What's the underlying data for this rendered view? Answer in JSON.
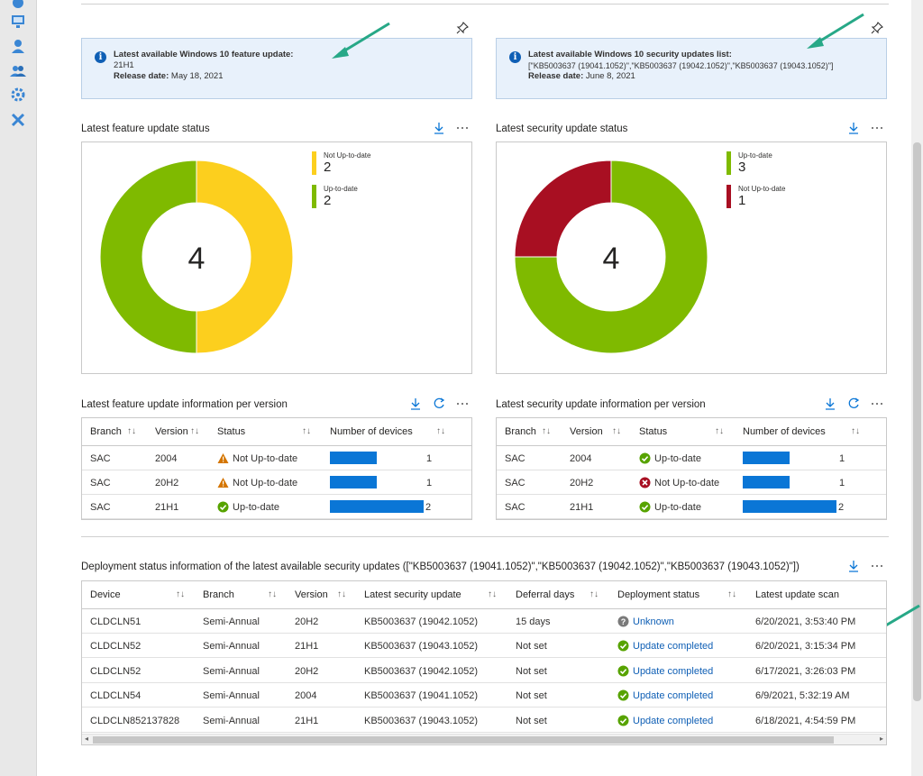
{
  "colors": {
    "accent": "#0a76d6",
    "yellow": "#fccf1e",
    "green": "#7fba00",
    "red": "#a80f22",
    "info_bg": "#e8f1fb",
    "arrow": "#27a887"
  },
  "left_rail": {
    "icons": [
      "cloud-icon",
      "monitor-icon",
      "user-icon",
      "users-icon",
      "gear-group-icon",
      "tools-icon"
    ]
  },
  "feature_info": {
    "title": "Latest available Windows 10 feature update:",
    "value": "21H1",
    "release_label": "Release date:",
    "release_date": "May 18, 2021"
  },
  "security_info": {
    "title": "Latest available Windows 10 security updates list:",
    "value": "[\"KB5003637 (19041.1052)\",\"KB5003637 (19042.1052)\",\"KB5003637 (19043.1052)\"]",
    "release_label": "Release date:",
    "release_date": "June 8, 2021"
  },
  "feature_status": {
    "title": "Latest feature update status",
    "total": "4",
    "legend": [
      {
        "label": "Not Up-to-date",
        "value": "2",
        "color": "#fccf1e"
      },
      {
        "label": "Up-to-date",
        "value": "2",
        "color": "#7fba00"
      }
    ]
  },
  "security_status": {
    "title": "Latest security update status",
    "total": "4",
    "legend": [
      {
        "label": "Up-to-date",
        "value": "3",
        "color": "#7fba00"
      },
      {
        "label": "Not Up-to-date",
        "value": "1",
        "color": "#a80f22"
      }
    ]
  },
  "chart_data": [
    {
      "type": "pie",
      "title": "Latest feature update status",
      "categories": [
        "Not Up-to-date",
        "Up-to-date"
      ],
      "values": [
        2,
        2
      ],
      "center_label": "4",
      "legend": "top-right"
    },
    {
      "type": "pie",
      "title": "Latest security update status",
      "categories": [
        "Up-to-date",
        "Not Up-to-date"
      ],
      "values": [
        3,
        1
      ],
      "center_label": "4",
      "legend": "top-right"
    }
  ],
  "feature_table": {
    "title": "Latest feature update information per version",
    "headers": [
      "Branch",
      "Version",
      "Status",
      "Number of devices"
    ],
    "rows": [
      {
        "branch": "SAC",
        "version": "2004",
        "status": "Not Up-to-date",
        "status_kind": "warning",
        "devices": "1",
        "fraction": 0.5
      },
      {
        "branch": "SAC",
        "version": "20H2",
        "status": "Not Up-to-date",
        "status_kind": "warning",
        "devices": "1",
        "fraction": 0.5
      },
      {
        "branch": "SAC",
        "version": "21H1",
        "status": "Up-to-date",
        "status_kind": "ok",
        "devices": "2",
        "fraction": 1.0
      }
    ]
  },
  "security_table": {
    "title": "Latest security update information per version",
    "headers": [
      "Branch",
      "Version",
      "Status",
      "Number of devices"
    ],
    "rows": [
      {
        "branch": "SAC",
        "version": "2004",
        "status": "Up-to-date",
        "status_kind": "ok",
        "devices": "1",
        "fraction": 0.5
      },
      {
        "branch": "SAC",
        "version": "20H2",
        "status": "Not Up-to-date",
        "status_kind": "error",
        "devices": "1",
        "fraction": 0.5
      },
      {
        "branch": "SAC",
        "version": "21H1",
        "status": "Up-to-date",
        "status_kind": "ok",
        "devices": "2",
        "fraction": 1.0
      }
    ]
  },
  "deployment": {
    "title": "Deployment status information of the latest available security updates ([\"KB5003637 (19041.1052)\",\"KB5003637 (19042.1052)\",\"KB5003637 (19043.1052)\"])",
    "headers": [
      "Device",
      "Branch",
      "Version",
      "Latest security update",
      "Deferral days",
      "Deployment status",
      "Latest update scan"
    ],
    "rows": [
      {
        "device": "CLDCLN51",
        "branch": "Semi-Annual",
        "version": "20H2",
        "update": "KB5003637 (19042.1052)",
        "deferral": "15 days",
        "status": "Unknown",
        "status_kind": "unknown",
        "scan": "6/20/2021, 3:53:40 PM"
      },
      {
        "device": "CLDCLN52",
        "branch": "Semi-Annual",
        "version": "21H1",
        "update": "KB5003637 (19043.1052)",
        "deferral": "Not set",
        "status": "Update completed",
        "status_kind": "ok",
        "scan": "6/20/2021, 3:15:34 PM"
      },
      {
        "device": "CLDCLN52",
        "branch": "Semi-Annual",
        "version": "20H2",
        "update": "KB5003637 (19042.1052)",
        "deferral": "Not set",
        "status": "Update completed",
        "status_kind": "ok",
        "scan": "6/17/2021, 3:26:03 PM"
      },
      {
        "device": "CLDCLN54",
        "branch": "Semi-Annual",
        "version": "2004",
        "update": "KB5003637 (19041.1052)",
        "deferral": "Not set",
        "status": "Update completed",
        "status_kind": "ok",
        "scan": "6/9/2021, 5:32:19 AM"
      },
      {
        "device": "CLDCLN852137828",
        "branch": "Semi-Annual",
        "version": "21H1",
        "update": "KB5003637 (19043.1052)",
        "deferral": "Not set",
        "status": "Update completed",
        "status_kind": "ok",
        "scan": "6/18/2021, 4:54:59 PM"
      }
    ]
  },
  "icons": {
    "download": "download-icon",
    "more": "more-icon",
    "refresh": "refresh-icon",
    "pin": "pin-icon",
    "sort": "sort-icon",
    "sort_glyph": "↑↓"
  }
}
